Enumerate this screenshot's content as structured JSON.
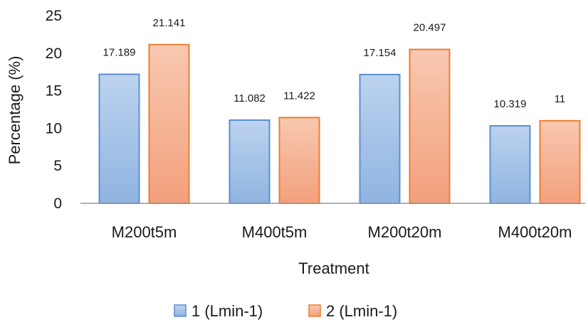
{
  "chart_data": {
    "type": "bar",
    "title": "",
    "xlabel": "Treatment",
    "ylabel": "Percentage  (%)",
    "ylim": [
      0,
      25
    ],
    "yticks": [
      0,
      5,
      10,
      15,
      20,
      25
    ],
    "grid": false,
    "legend_position": "bottom",
    "categories": [
      "M200t5m",
      "M400t5m",
      "M200t20m",
      "M400t20m"
    ],
    "series": [
      {
        "name": "1 (Lmin-1)",
        "values": [
          17.189,
          11.082,
          17.154,
          10.319
        ],
        "labels": [
          "17.189",
          "11.082",
          "17.154",
          "10.319"
        ],
        "fill_top": "#bcd3ef",
        "fill_bottom": "#8fb4e0",
        "stroke": "#5b8fd1"
      },
      {
        "name": "2 (Lmin-1)",
        "values": [
          21.141,
          11.422,
          20.497,
          11
        ],
        "labels": [
          "21.141",
          "11.422",
          "20.497",
          "11"
        ],
        "fill_top": "#f8c8b0",
        "fill_bottom": "#f3a07c",
        "stroke": "#ed7d31"
      }
    ]
  }
}
